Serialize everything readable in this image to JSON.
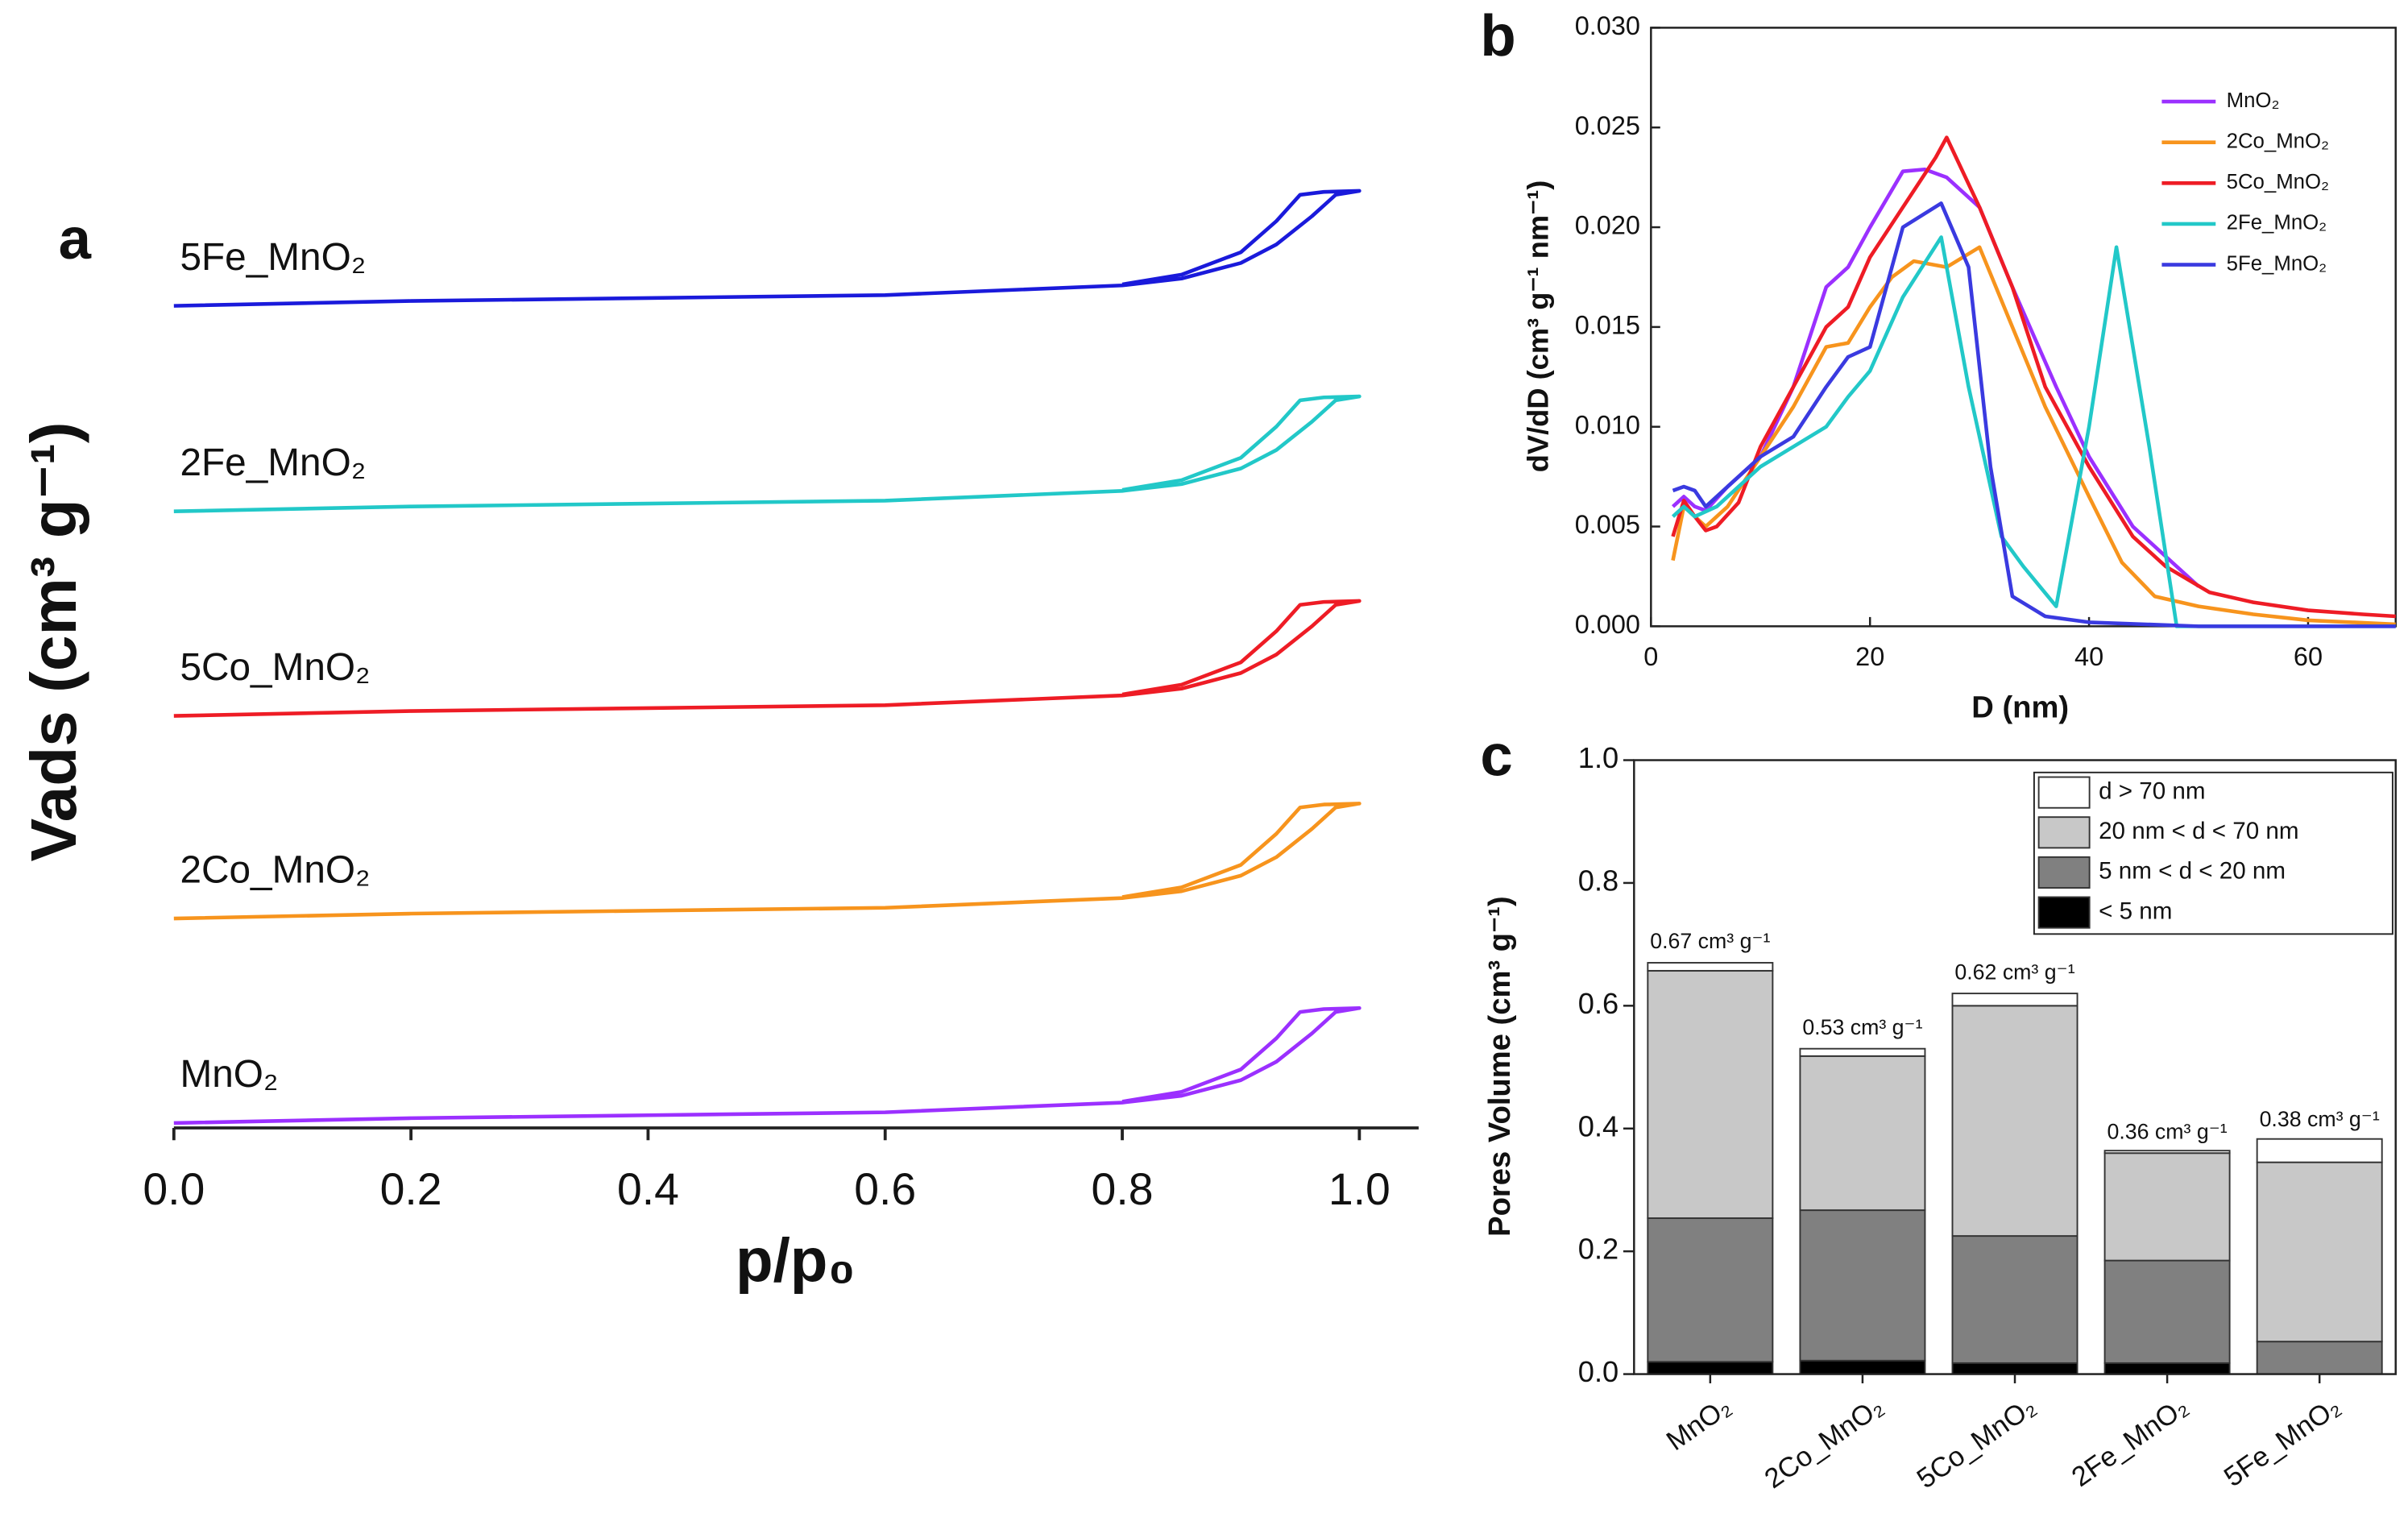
{
  "chart_data": [
    {
      "type": "line",
      "panel_label": "a",
      "xlabel": "p/p₀",
      "ylabel": "Vads (cm³ g⁻¹)",
      "xlim": [
        0,
        1.05
      ],
      "ylim": [
        0,
        100
      ],
      "xticks": [
        {
          "value": 0,
          "label": "0.0"
        },
        0.2,
        0.4,
        0.6,
        0.8,
        {
          "value": 1,
          "label": "1.0"
        }
      ],
      "series": [
        {
          "name": "MnO₂",
          "color": "#9b30ff",
          "x": [
            0,
            0.2,
            0.4,
            0.6,
            0.8,
            0.85,
            0.9,
            0.93,
            0.96,
            0.98,
            1.0,
            0.97,
            0.95,
            0.93,
            0.9,
            0.85,
            0.8
          ],
          "values": [
            0.5,
            1,
            1.3,
            1.6,
            2.6,
            3.3,
            4.9,
            6.8,
            9.7,
            11.9,
            12.3,
            12.2,
            11.9,
            9.2,
            6,
            3.7,
            2.7
          ]
        },
        {
          "name": "2Co_MnO₂",
          "color": "#f7941d",
          "x": [
            0,
            0.2,
            0.4,
            0.6,
            0.8,
            0.85,
            0.9,
            0.93,
            0.96,
            0.98,
            1.0,
            0.97,
            0.95,
            0.93,
            0.9,
            0.85,
            0.8
          ],
          "values": [
            21.5,
            22,
            22.3,
            22.6,
            23.6,
            24.3,
            25.9,
            27.8,
            30.7,
            32.9,
            33.3,
            33.2,
            32.9,
            30.2,
            27,
            24.7,
            23.7
          ]
        },
        {
          "name": "5Co_MnO₂",
          "color": "#ee1c25",
          "x": [
            0,
            0.2,
            0.4,
            0.6,
            0.8,
            0.85,
            0.9,
            0.93,
            0.96,
            0.98,
            1.0,
            0.97,
            0.95,
            0.93,
            0.9,
            0.85,
            0.8
          ],
          "values": [
            42.3,
            42.8,
            43.1,
            43.4,
            44.4,
            45.1,
            46.7,
            48.6,
            51.5,
            53.7,
            54.1,
            54,
            53.7,
            51,
            47.8,
            45.5,
            44.5
          ]
        },
        {
          "name": "2Fe_MnO₂",
          "color": "#22c8c8",
          "x": [
            0,
            0.2,
            0.4,
            0.6,
            0.8,
            0.85,
            0.9,
            0.93,
            0.96,
            0.98,
            1.0,
            0.97,
            0.95,
            0.93,
            0.9,
            0.85,
            0.8
          ],
          "values": [
            63.3,
            63.8,
            64.1,
            64.4,
            65.4,
            66.1,
            67.7,
            69.6,
            72.5,
            74.7,
            75.1,
            75,
            74.7,
            72,
            68.8,
            66.5,
            65.5
          ]
        },
        {
          "name": "5Fe_MnO₂",
          "color": "#1a1adb",
          "x": [
            0,
            0.2,
            0.4,
            0.6,
            0.8,
            0.85,
            0.9,
            0.93,
            0.96,
            0.98,
            1.0,
            0.97,
            0.95,
            0.93,
            0.9,
            0.85,
            0.8
          ],
          "values": [
            84.4,
            84.9,
            85.2,
            85.5,
            86.5,
            87.2,
            88.8,
            90.7,
            93.6,
            95.8,
            96.2,
            96.1,
            95.8,
            93.1,
            89.9,
            87.6,
            86.6
          ]
        }
      ]
    },
    {
      "type": "line",
      "panel_label": "b",
      "xlabel": "D (nm)",
      "ylabel": "dV/dD (cm³ g⁻¹ nm⁻¹)",
      "xlim": [
        0,
        68
      ],
      "ylim": [
        0,
        0.03
      ],
      "xticks": [
        0,
        20,
        40,
        60
      ],
      "yticks": [
        {
          "value": 0,
          "label": "0.000"
        },
        {
          "value": 0.005,
          "label": "0.005"
        },
        {
          "value": 0.01,
          "label": "0.010"
        },
        {
          "value": 0.015,
          "label": "0.015"
        },
        {
          "value": 0.02,
          "label": "0.020"
        },
        {
          "value": 0.025,
          "label": "0.025"
        },
        {
          "value": 0.03,
          "label": "0.030"
        }
      ],
      "legend": "upper right",
      "series": [
        {
          "name": "MnO₂",
          "color": "#9b30ff",
          "x": [
            2,
            3,
            4,
            5,
            7,
            10,
            13,
            16,
            18,
            20,
            23,
            25,
            27,
            30,
            33,
            37,
            40,
            44,
            47,
            50
          ],
          "values": [
            0.006,
            0.0065,
            0.006,
            0.0058,
            0.007,
            0.0085,
            0.012,
            0.017,
            0.018,
            0.02,
            0.0228,
            0.0229,
            0.0225,
            0.021,
            0.017,
            0.012,
            0.0085,
            0.005,
            0.0035,
            0.002
          ]
        },
        {
          "name": "2Co_MnO₂",
          "color": "#f7941d",
          "x": [
            2,
            3,
            4,
            5,
            7,
            10,
            13,
            16,
            18,
            20,
            22,
            24,
            27,
            30,
            33,
            36,
            40,
            43,
            46,
            50,
            55,
            60,
            68
          ],
          "values": [
            0.0033,
            0.006,
            0.0055,
            0.005,
            0.006,
            0.0085,
            0.011,
            0.014,
            0.0142,
            0.016,
            0.0175,
            0.0183,
            0.018,
            0.019,
            0.015,
            0.011,
            0.0065,
            0.0032,
            0.0015,
            0.001,
            0.0006,
            0.0003,
            0.0001
          ]
        },
        {
          "name": "5Co_MnO₂",
          "color": "#ee1c25",
          "x": [
            2,
            3,
            4,
            5,
            6,
            8,
            10,
            13,
            16,
            18,
            20,
            23,
            26,
            27,
            30,
            33,
            36,
            40,
            44,
            47,
            51,
            55,
            60,
            65,
            68
          ],
          "values": [
            0.0045,
            0.0063,
            0.0055,
            0.0048,
            0.005,
            0.0062,
            0.009,
            0.012,
            0.015,
            0.016,
            0.0185,
            0.021,
            0.0235,
            0.0245,
            0.021,
            0.017,
            0.012,
            0.008,
            0.0045,
            0.003,
            0.0017,
            0.0012,
            0.0008,
            0.0006,
            0.0005
          ]
        },
        {
          "name": "2Fe_MnO₂",
          "color": "#22c8c8",
          "x": [
            2,
            3,
            4,
            6,
            8,
            10,
            13,
            16,
            18,
            20,
            23,
            26.5,
            29,
            32,
            34,
            37,
            40,
            42.5,
            45.5,
            48,
            55,
            68
          ],
          "values": [
            0.0055,
            0.006,
            0.0055,
            0.006,
            0.007,
            0.008,
            0.009,
            0.01,
            0.0115,
            0.0128,
            0.0165,
            0.0195,
            0.012,
            0.0045,
            0.003,
            0.001,
            0.01,
            0.019,
            0.009,
            0,
            0,
            0
          ]
        },
        {
          "name": "5Fe_MnO₂",
          "color": "#3a3ae0",
          "x": [
            2,
            3,
            4,
            5,
            7,
            10,
            13,
            16,
            18,
            20,
            23,
            26.5,
            29,
            31,
            33,
            36,
            40,
            45,
            50,
            60,
            68
          ],
          "values": [
            0.0068,
            0.007,
            0.0068,
            0.006,
            0.007,
            0.0085,
            0.0095,
            0.012,
            0.0135,
            0.014,
            0.02,
            0.0212,
            0.018,
            0.008,
            0.0015,
            0.0005,
            0.0002,
            0.0001,
            0,
            0,
            0
          ]
        }
      ]
    },
    {
      "type": "stacked_bar",
      "panel_label": "c",
      "ylabel": "Pores Volume (cm³ g⁻¹)",
      "categories": [
        "MnO₂",
        "2Co_MnO₂",
        "5Co_MnO₂",
        "2Fe_MnO₂",
        "5Fe_MnO₂"
      ],
      "ylim": [
        0,
        1
      ],
      "yticks": [
        {
          "value": 0,
          "label": "0.0"
        },
        0.2,
        0.4,
        0.6,
        0.8,
        {
          "value": 1,
          "label": "1.0"
        }
      ],
      "legend": "upper right",
      "series": [
        {
          "name": "< 5 nm",
          "color": "#000000",
          "values": [
            0.02,
            0.022,
            0.018,
            0.018,
            0
          ]
        },
        {
          "name": "5 nm < d < 20 nm",
          "color": "#808080",
          "values": [
            0.234,
            0.245,
            0.207,
            0.167,
            0.053
          ]
        },
        {
          "name": "20 nm < d < 70 nm",
          "color": "#c8c8c8",
          "values": [
            0.403,
            0.251,
            0.375,
            0.175,
            0.292
          ]
        },
        {
          "name": "d > 70 nm",
          "color": "#ffffff",
          "values": [
            0.013,
            0.012,
            0.02,
            0.004,
            0.038
          ]
        }
      ],
      "totals": [
        0.67,
        0.53,
        0.62,
        0.36,
        0.38
      ],
      "total_labels": [
        "0.67 cm³ g⁻¹",
        "0.53 cm³ g⁻¹",
        "0.62 cm³ g⁻¹",
        "0.36 cm³ g⁻¹",
        "0.38 cm³ g⁻¹"
      ]
    }
  ]
}
